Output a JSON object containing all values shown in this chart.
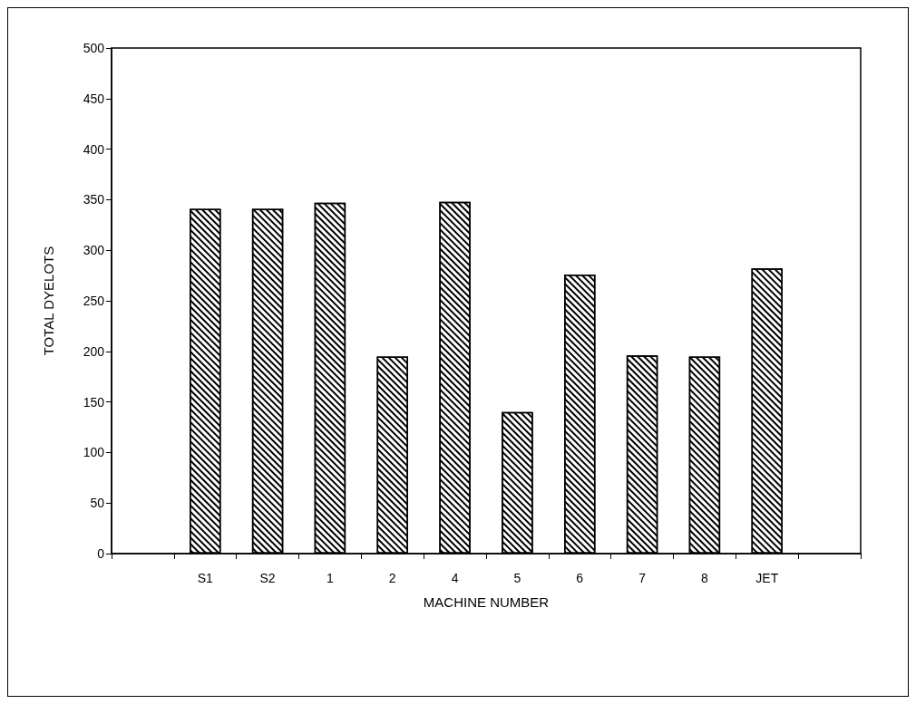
{
  "chart_data": {
    "type": "bar",
    "xlabel": "MACHINE NUMBER",
    "ylabel": "TOTAL DYELOTS",
    "categories": [
      null,
      "S1",
      "S2",
      "1",
      "2",
      "4",
      "5",
      "6",
      "7",
      "8",
      "JET",
      null
    ],
    "series": [
      {
        "color": "#000000",
        "values": [
          null,
          341,
          341,
          347,
          195,
          348,
          140,
          276,
          196,
          195,
          282,
          null
        ]
      }
    ],
    "ylim": [
      0,
      500
    ],
    "yticks": [
      0,
      50,
      100,
      150,
      200,
      250,
      300,
      350,
      400,
      450,
      500
    ],
    "grid": false
  }
}
